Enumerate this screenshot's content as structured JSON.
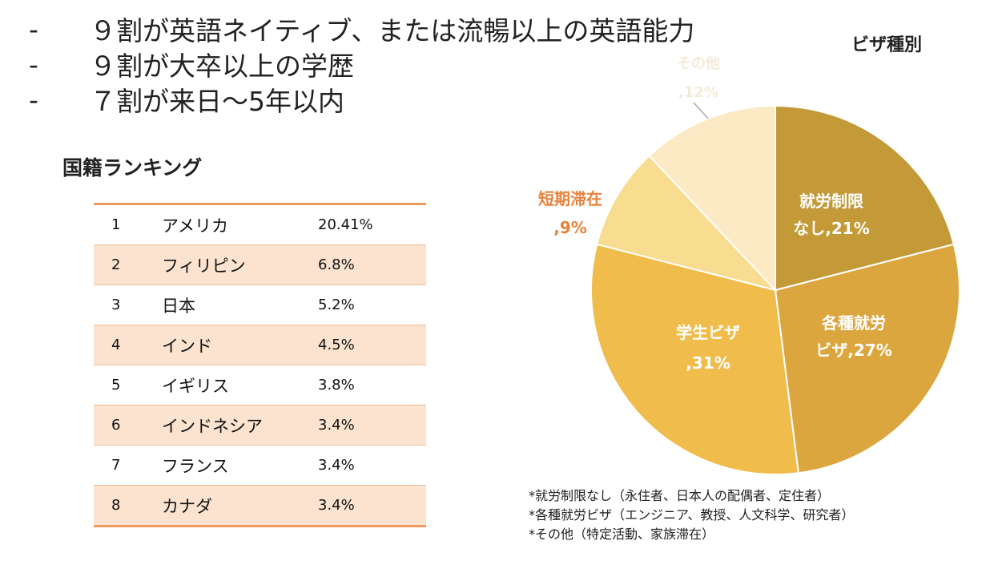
{
  "bullets": [
    {
      "dash": "-",
      "text": "９割が英語ネイティブ、または流暢以上の英語能力"
    },
    {
      "dash": "-",
      "text": "９割が大卒以上の学歴"
    },
    {
      "dash": "-",
      "text": "７割が来日〜5年以内"
    }
  ],
  "ranking": {
    "title": "国籍ランキング",
    "rows": [
      {
        "rank": "1",
        "country": "アメリカ",
        "pct": "20.41%"
      },
      {
        "rank": "2",
        "country": "フィリピン",
        "pct": "6.8%"
      },
      {
        "rank": "3",
        "country": "日本",
        "pct": "5.2%"
      },
      {
        "rank": "4",
        "country": "インド",
        "pct": "4.5%"
      },
      {
        "rank": "5",
        "country": "イギリス",
        "pct": "3.8%"
      },
      {
        "rank": "6",
        "country": "インドネシア",
        "pct": "3.4%"
      },
      {
        "rank": "7",
        "country": "フランス",
        "pct": "3.4%"
      },
      {
        "rank": "8",
        "country": "カナダ",
        "pct": "3.4%"
      }
    ],
    "row_colors": {
      "shaded": "#fbe3cf",
      "border": "#ee9a5c"
    }
  },
  "notes": [
    "*就労制限なし（永住者、日本人の配偶者、定住者）",
    "*各種就労ビザ（エンジニア、教授、人文科学、研究者）",
    "*その他（特定活動、家族滞在）"
  ],
  "chart_data": {
    "type": "pie",
    "title": "ビザ種別",
    "slices": [
      {
        "label": [
          "就労制限",
          "なし,21%"
        ],
        "value": 21,
        "color": "#c39a37",
        "text_color": "#ffffff"
      },
      {
        "label": [
          "各種就労",
          "ビザ,27%"
        ],
        "value": 27,
        "color": "#dca63f",
        "text_color": "#ffffff"
      },
      {
        "label": [
          "学生ビザ",
          ",31%"
        ],
        "value": 31,
        "color": "#f0bd4c",
        "text_color": "#ffffff"
      },
      {
        "label": [
          "短期滞在",
          ",9%"
        ],
        "value": 9,
        "color": "#f8dc8f",
        "text_color": "#e8823a"
      },
      {
        "label": [
          "その他",
          ",12%"
        ],
        "value": 12,
        "color": "#fbeac4",
        "text_color": "#f3ead9"
      }
    ]
  }
}
